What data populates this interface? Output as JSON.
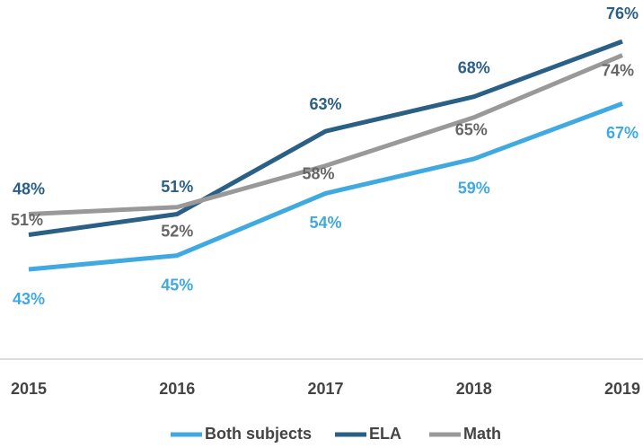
{
  "chart_data": {
    "type": "line",
    "categories": [
      "2015",
      "2016",
      "2017",
      "2018",
      "2019"
    ],
    "series": [
      {
        "name": "Both subjects",
        "color": "#3fa9e0",
        "values": [
          43,
          45,
          54,
          59,
          67
        ],
        "value_labels": [
          "43%",
          "45%",
          "54%",
          "59%",
          "67%"
        ]
      },
      {
        "name": "ELA",
        "color": "#2a5f86",
        "values": [
          48,
          51,
          63,
          68,
          76
        ],
        "value_labels": [
          "48%",
          "51%",
          "63%",
          "68%",
          "76%"
        ]
      },
      {
        "name": "Math",
        "color": "#999999",
        "values": [
          51,
          52,
          58,
          65,
          74
        ],
        "value_labels": [
          "51%",
          "52%",
          "58%",
          "65%",
          "74%"
        ]
      }
    ],
    "ylim": [
      30,
      82
    ]
  }
}
